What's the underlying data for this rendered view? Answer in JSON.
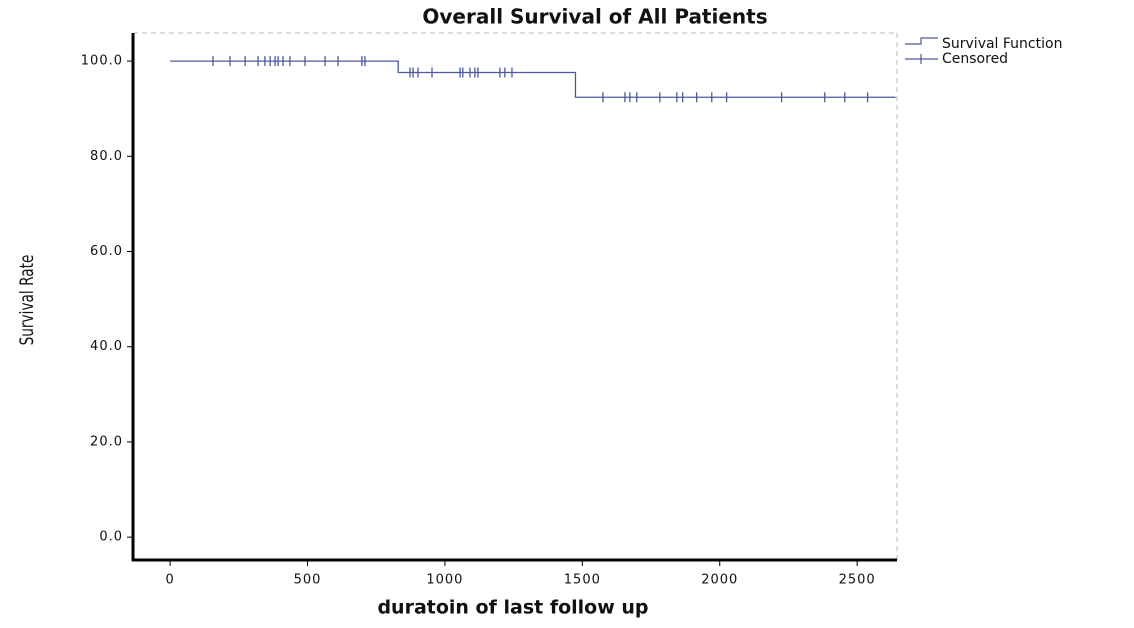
{
  "chart_data": {
    "type": "survival",
    "title": "Overall Survival of All Patients",
    "x_label": "duratoin of last follow up",
    "y_label": "Survival Rate",
    "xlim": [
      -135,
      2645
    ],
    "ylim": [
      -4.8,
      105.9
    ],
    "xticks": [
      0,
      500,
      1000,
      1500,
      2000,
      2500
    ],
    "yticks": [
      {
        "value": 0,
        "label": "0.0"
      },
      {
        "value": 20,
        "label": "20.0"
      },
      {
        "value": 40,
        "label": "40.0"
      },
      {
        "value": 60,
        "label": "60.0"
      },
      {
        "value": 80,
        "label": "80.0"
      },
      {
        "value": 100,
        "label": "100.0"
      }
    ],
    "series": [
      {
        "name": "Survival Function",
        "color": "#4b5a9c",
        "x": [
          0,
          830,
          830,
          1475,
          1475,
          2640
        ],
        "values": [
          100,
          100,
          97.6,
          97.6,
          92.4,
          92.4
        ]
      },
      {
        "name": "Censored",
        "color": "#4b5a9c",
        "x": [
          156,
          218,
          273,
          320,
          345,
          364,
          382,
          393,
          411,
          436,
          491,
          564,
          611,
          698,
          709,
          873,
          884,
          902,
          953,
          1055,
          1065,
          1091,
          1109,
          1120,
          1200,
          1218,
          1244,
          1575,
          1655,
          1673,
          1698,
          1782,
          1844,
          1865,
          1916,
          1971,
          2025,
          2225,
          2382,
          2455,
          2538
        ],
        "values": [
          100,
          100,
          100,
          100,
          100,
          100,
          100,
          100,
          100,
          100,
          100,
          100,
          100,
          100,
          100,
          97.6,
          97.6,
          97.6,
          97.6,
          97.6,
          97.6,
          97.6,
          97.6,
          97.6,
          97.6,
          97.6,
          97.6,
          92.4,
          92.4,
          92.4,
          92.4,
          92.4,
          92.4,
          92.4,
          92.4,
          92.4,
          92.4,
          92.4,
          92.4,
          92.4,
          92.4
        ]
      }
    ]
  }
}
